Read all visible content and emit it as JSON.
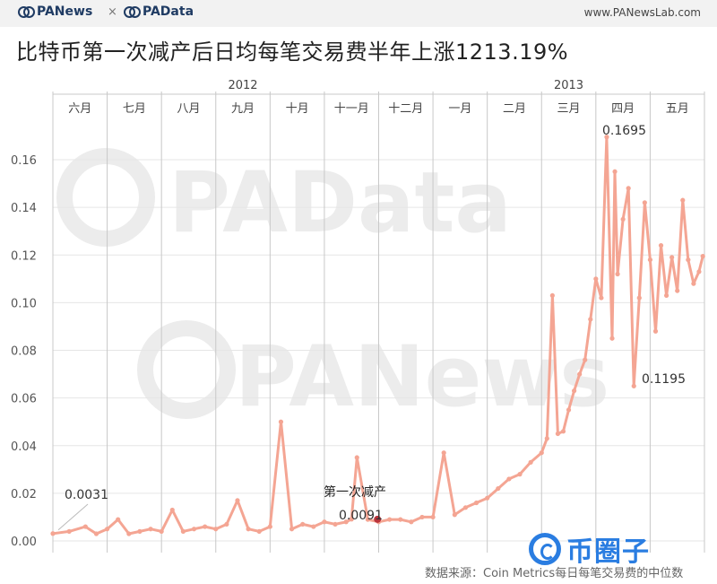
{
  "header": {
    "brand_left": "PANews",
    "brand_sep": "×",
    "brand_right": "PAData",
    "url": "www.PANewsLab.com"
  },
  "title": "比特币第一次减产后日均每笔交易费半年上涨1213.19%",
  "watermarks": [
    "PAData",
    "PANews"
  ],
  "source": "数据来源：Coin Metrics每日每笔交易费的中位数",
  "corner_logo": "币圈子",
  "colors": {
    "line": "#f4a593",
    "marker": "#b8333b",
    "grid": "#e6e6e6",
    "separator": "#c8c8c8",
    "watermark": "#ececec",
    "logo": "#2a7de1"
  },
  "chart_data": {
    "type": "line",
    "title": "比特币第一次减产后日均每笔交易费半年上涨1213.19%",
    "xlabel": "",
    "ylabel": "",
    "years": [
      {
        "label": "2012",
        "months": 7
      },
      {
        "label": "2013",
        "months": 5
      }
    ],
    "months": [
      "六月",
      "七月",
      "八月",
      "九月",
      "十月",
      "十一月",
      "十二月",
      "一月",
      "二月",
      "三月",
      "四月",
      "五月"
    ],
    "ylim": [
      0,
      0.18
    ],
    "yticks": [
      0.0,
      0.02,
      0.04,
      0.06,
      0.08,
      0.1,
      0.12,
      0.14,
      0.16
    ],
    "ytick_labels": [
      "0.00",
      "0.02",
      "0.04",
      "0.06",
      "0.08",
      "0.10",
      "0.12",
      "0.14",
      "0.16"
    ],
    "grid": true,
    "series": [
      {
        "x_month": [
          0.0,
          0.3,
          0.6,
          0.8,
          1.0,
          1.2,
          1.4,
          1.6,
          1.8,
          2.0,
          2.2,
          2.4,
          2.6,
          2.8,
          3.0,
          3.2,
          3.4,
          3.6,
          3.8,
          4.0,
          4.2,
          4.4,
          4.6,
          4.8,
          5.0,
          5.2,
          5.4,
          5.5,
          5.6,
          5.8,
          6.0,
          6.2,
          6.4,
          6.6,
          6.8,
          7.0,
          7.2,
          7.4,
          7.6,
          7.8,
          8.0,
          8.2,
          8.4,
          8.6,
          8.8,
          9.0,
          9.1,
          9.2,
          9.3,
          9.4,
          9.5,
          9.6,
          9.7,
          9.8,
          9.9,
          10.0,
          10.1,
          10.2,
          10.3,
          10.35,
          10.4,
          10.5,
          10.6,
          10.7,
          10.8,
          10.9,
          11.0,
          11.1,
          11.2,
          11.3,
          11.4,
          11.5,
          11.6,
          11.7,
          11.8,
          11.9,
          11.97
        ],
        "values": [
          0.0031,
          0.004,
          0.006,
          0.003,
          0.005,
          0.009,
          0.003,
          0.004,
          0.005,
          0.004,
          0.013,
          0.004,
          0.005,
          0.006,
          0.005,
          0.007,
          0.017,
          0.005,
          0.004,
          0.006,
          0.05,
          0.005,
          0.007,
          0.006,
          0.008,
          0.007,
          0.008,
          0.0091,
          0.035,
          0.009,
          0.008,
          0.009,
          0.009,
          0.008,
          0.01,
          0.01,
          0.037,
          0.011,
          0.014,
          0.016,
          0.018,
          0.022,
          0.026,
          0.028,
          0.033,
          0.037,
          0.043,
          0.103,
          0.045,
          0.046,
          0.055,
          0.063,
          0.07,
          0.076,
          0.093,
          0.11,
          0.102,
          0.1695,
          0.085,
          0.155,
          0.112,
          0.135,
          0.148,
          0.065,
          0.102,
          0.142,
          0.118,
          0.088,
          0.124,
          0.103,
          0.119,
          0.105,
          0.143,
          0.118,
          0.108,
          0.113,
          0.1195
        ]
      }
    ],
    "annotations": [
      {
        "text": "0.0031",
        "x_month": 0.0,
        "value": 0.0031
      },
      {
        "text": "第一次减产",
        "x_month": 5.5,
        "value": 0.0091
      },
      {
        "text": "0.0091",
        "x_month": 5.5,
        "value": 0.0091
      },
      {
        "text": "0.1695",
        "x_month": 10.2,
        "value": 0.1695
      },
      {
        "text": "0.1195",
        "x_month": 11.97,
        "value": 0.1195
      }
    ]
  }
}
